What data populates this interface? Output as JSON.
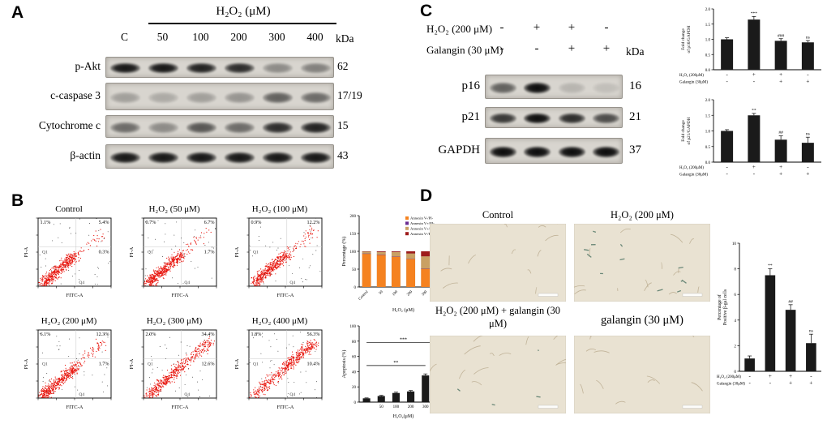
{
  "panel_a": {
    "label": "A",
    "treatment_header": "H₂O₂ (μM)",
    "kda_header": "kDa",
    "lanes": [
      "C",
      "50",
      "100",
      "200",
      "300",
      "400"
    ],
    "blots": [
      {
        "protein": "p-Akt",
        "kda": "62",
        "band_intensities": [
          0.9,
          0.9,
          0.85,
          0.8,
          0.35,
          0.4
        ]
      },
      {
        "protein": "c-caspase 3",
        "kda": "17/19",
        "band_intensities": [
          0.25,
          0.2,
          0.25,
          0.3,
          0.55,
          0.5
        ]
      },
      {
        "protein": "Cytochrome c",
        "kda": "15",
        "band_intensities": [
          0.5,
          0.35,
          0.6,
          0.5,
          0.8,
          0.85
        ]
      },
      {
        "protein": "β-actin",
        "kda": "43",
        "band_intensities": [
          0.9,
          0.9,
          0.9,
          0.9,
          0.9,
          0.9
        ]
      }
    ]
  },
  "panel_b": {
    "label": "B",
    "axis": {
      "xlabel": "FITC-A",
      "ylabel": "PI-A"
    },
    "quadrant_labels": {
      "q1": "Q1",
      "q4": "Q4"
    },
    "flow_plots": [
      {
        "title": "Control",
        "pct_upper_left": "1.1%",
        "pct_upper_right": "5.4%",
        "pct_lower_right": "0.3%"
      },
      {
        "title": "H₂O₂ (50 μM)",
        "pct_upper_left": "0.7%",
        "pct_upper_right": "6.7%",
        "pct_lower_right": "1.7%"
      },
      {
        "title": "H₂O₂ (100 μM)",
        "pct_upper_left": "0.9%",
        "pct_upper_right": "12.2%",
        "pct_lower_right": ""
      },
      {
        "title": "H₂O₂ (200 μM)",
        "pct_upper_left": "6.1%",
        "pct_upper_right": "12.3%",
        "pct_lower_right": "1.7%"
      },
      {
        "title": "H₂O₂ (300 μM)",
        "pct_upper_left": "2.0%",
        "pct_upper_right": "34.4%",
        "pct_lower_right": "12.6%"
      },
      {
        "title": "H₂O₂ (400 μM)",
        "pct_upper_left": "1.8%",
        "pct_upper_right": "56.3%",
        "pct_lower_right": "10.4%"
      }
    ]
  },
  "panel_c": {
    "label": "C",
    "kda_header": "kDa",
    "treatment_rows": [
      {
        "label": "H₂O₂ (200 μM)",
        "signs": [
          "-",
          "+",
          "+",
          "-"
        ]
      },
      {
        "label": "Galangin (30 μM)",
        "signs": [
          "-",
          "-",
          "+",
          "+"
        ]
      }
    ],
    "blots": [
      {
        "protein": "p16",
        "kda": "16",
        "band_intensities": [
          0.55,
          0.95,
          0.15,
          0.1
        ]
      },
      {
        "protein": "p21",
        "kda": "21",
        "band_intensities": [
          0.75,
          0.95,
          0.8,
          0.65
        ]
      },
      {
        "protein": "GAPDH",
        "kda": "37",
        "band_intensities": [
          0.95,
          0.95,
          0.95,
          0.95
        ]
      }
    ]
  },
  "panel_d": {
    "label": "D",
    "images": [
      {
        "title": "Control"
      },
      {
        "title": "H₂O₂ (200 μM)"
      },
      {
        "title": "H₂O₂ (200 μM) + galangin (30 μM)"
      },
      {
        "title": "galangin (30 μM)"
      }
    ]
  },
  "chart_data": [
    {
      "id": "annexin-stacked-bar",
      "type": "bar",
      "stacked": true,
      "ylabel": "Percentage (%)",
      "xlabel": "H₂O₂ (μM)",
      "ylim": [
        0,
        200
      ],
      "yticks": [
        "0",
        "50",
        "100",
        "150",
        "200"
      ],
      "categories": [
        "Control",
        "50",
        "100",
        "200",
        "300",
        "400"
      ],
      "series": [
        {
          "name": "Annexin V-/PI-",
          "color": "#f58220",
          "values": [
            93,
            90,
            85,
            79,
            51,
            31
          ]
        },
        {
          "name": "Annexin V+/PI-",
          "color": "#6a2c91",
          "values": [
            1,
            1,
            1,
            1,
            1,
            2
          ]
        },
        {
          "name": "Annexin V+/PI+",
          "color": "#c9a063",
          "values": [
            5,
            7,
            12,
            14,
            34,
            56
          ]
        },
        {
          "name": "Annexin V-/PI+",
          "color": "#9e1b1b",
          "values": [
            1,
            2,
            2,
            6,
            14,
            11
          ]
        }
      ],
      "legend_position": "top-right",
      "grid": false
    },
    {
      "id": "apoptosis-bar",
      "type": "bar",
      "ylabel": "Apoptosis (%)",
      "xlabel": "H₂O₂(μM)",
      "ylim": [
        0,
        100
      ],
      "yticks": [
        "0",
        "20",
        "40",
        "60",
        "80",
        "100"
      ],
      "categories": [
        "",
        "50",
        "100",
        "200",
        "300",
        "400"
      ],
      "values": [
        5,
        8,
        12,
        14,
        35,
        60
      ],
      "errors": [
        0.5,
        0.8,
        1,
        1.2,
        2,
        2
      ],
      "bar_color": "#1a1a1a",
      "sig_lines": [
        {
          "from": 0,
          "to": 4,
          "y": 48,
          "label": "**"
        },
        {
          "from": 0,
          "to": 5,
          "y": 78,
          "label": "***"
        }
      ]
    },
    {
      "id": "p16-fold-change",
      "type": "bar",
      "ylabel": "Fold change of p16/GAPDH",
      "ylim": [
        0,
        2.0
      ],
      "yticks": [
        "0.0",
        "0.5",
        "1.0",
        "1.5",
        "2.0"
      ],
      "values": [
        1.0,
        1.65,
        0.95,
        0.9
      ],
      "errors": [
        0.05,
        0.1,
        0.07,
        0.06
      ],
      "bar_color": "#1a1a1a",
      "bar_annotations": [
        "",
        "***",
        "###",
        "ns"
      ],
      "x_sign_rows": [
        {
          "label": "H₂O₂ (200μM)",
          "signs": [
            "-",
            "+",
            "+",
            "-"
          ]
        },
        {
          "label": "Galangin (30μM)",
          "signs": [
            "-",
            "-",
            "+",
            "+"
          ]
        }
      ]
    },
    {
      "id": "p21-fold-change",
      "type": "bar",
      "ylabel": "Fold change of p21/GAPDH",
      "ylim": [
        0,
        2.0
      ],
      "yticks": [
        "0.0",
        "0.5",
        "1.0",
        "1.5",
        "2.0"
      ],
      "values": [
        1.0,
        1.5,
        0.72,
        0.62
      ],
      "errors": [
        0.04,
        0.06,
        0.12,
        0.18
      ],
      "bar_color": "#1a1a1a",
      "bar_annotations": [
        "",
        "**",
        "##",
        "ns"
      ],
      "x_sign_rows": [
        {
          "label": "H₂O₂ (200μM)",
          "signs": [
            "-",
            "+",
            "+",
            "-"
          ]
        },
        {
          "label": "Galangin (30μM)",
          "signs": [
            "-",
            "-",
            "+",
            "+"
          ]
        }
      ]
    },
    {
      "id": "beta-gal-positive-cells",
      "type": "bar",
      "ylabel": "Percentage of Positive β-gal cells",
      "ylim": [
        0,
        10
      ],
      "yticks": [
        "0",
        "2",
        "4",
        "6",
        "8",
        "10"
      ],
      "values": [
        1.0,
        7.5,
        4.8,
        2.2
      ],
      "errors": [
        0.2,
        0.5,
        0.4,
        0.7
      ],
      "bar_color": "#1a1a1a",
      "bar_annotations": [
        "",
        "**",
        "##",
        "ns"
      ],
      "x_sign_rows": [
        {
          "label": "H₂O₂ (200μM)",
          "signs": [
            "-",
            "+",
            "+",
            "-"
          ]
        },
        {
          "label": "Galangin (30μM)",
          "signs": [
            "-",
            "-",
            "+",
            "+"
          ]
        }
      ]
    }
  ]
}
